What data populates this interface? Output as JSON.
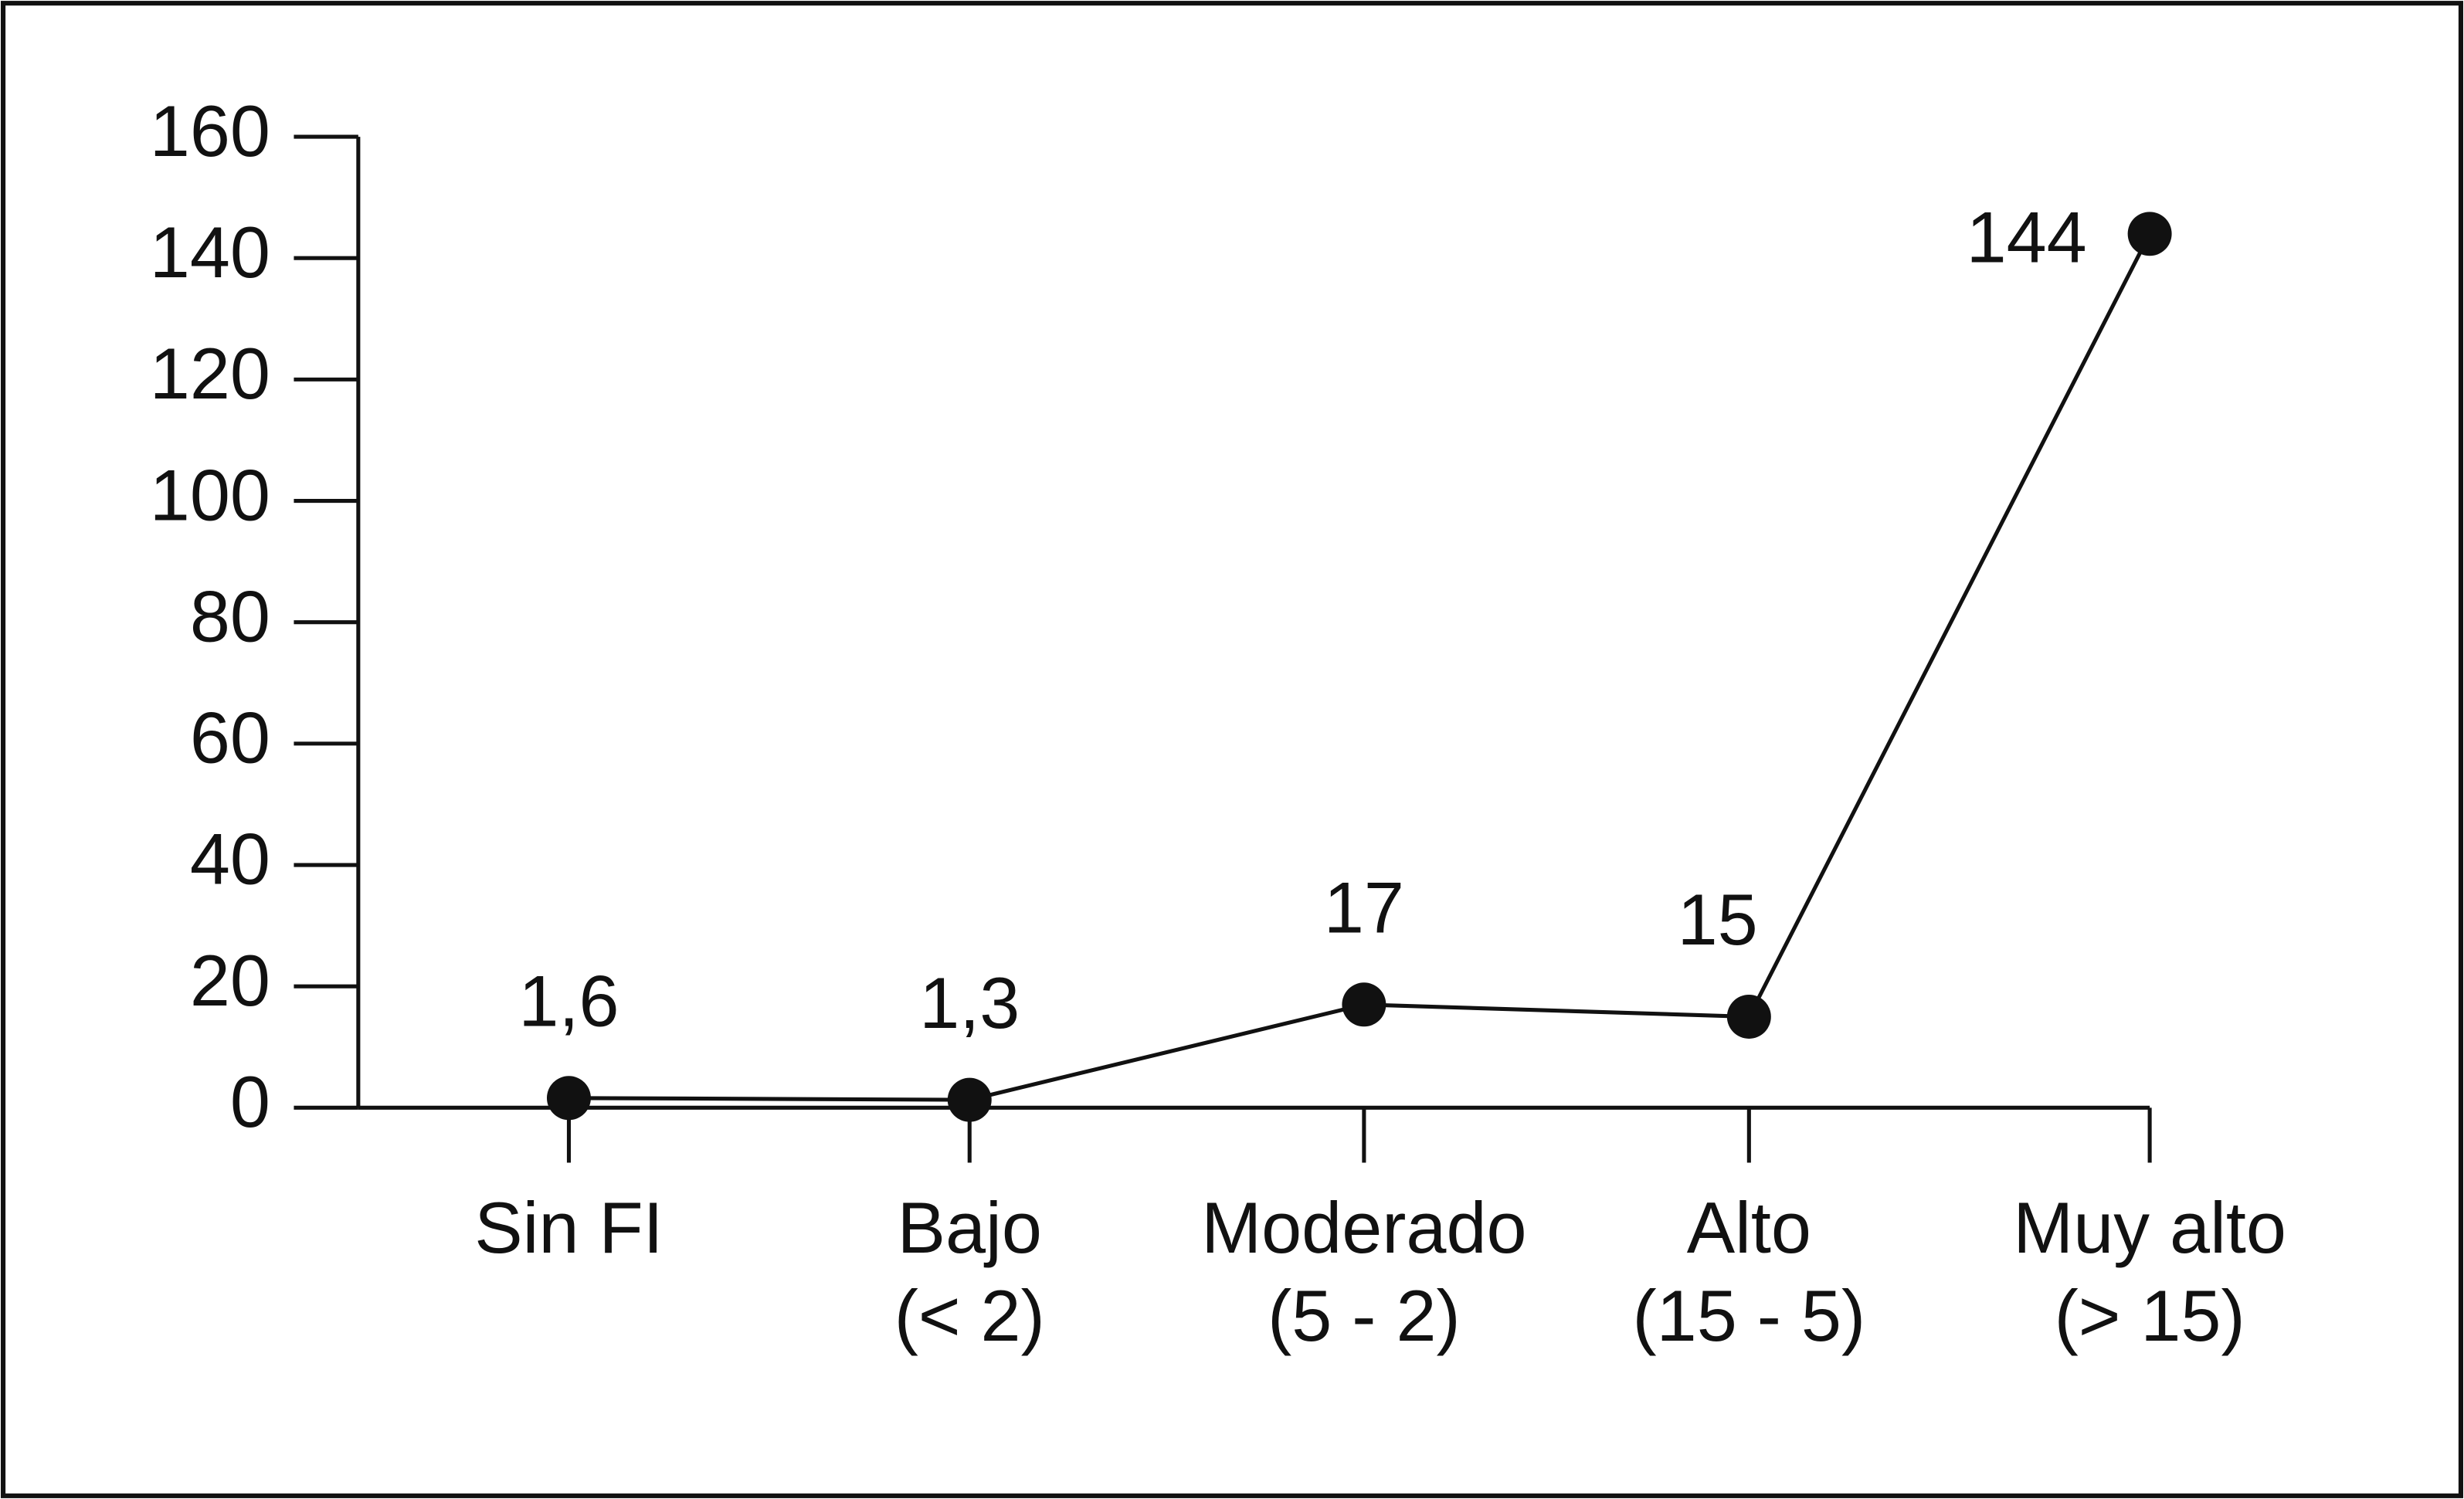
{
  "chart_data": {
    "type": "line",
    "categories": [
      "Sin FI",
      "Bajo\n(< 2)",
      "Moderado\n(5 - 2)",
      "Alto\n(15 - 5)",
      "Muy alto\n(> 15)"
    ],
    "values": [
      1.6,
      1.3,
      17,
      15,
      144
    ],
    "value_labels": [
      "1,6",
      "1,3",
      "17",
      "15",
      "144"
    ],
    "color": "#111111",
    "ylim": [
      0,
      160
    ],
    "yticks": [
      0,
      20,
      40,
      60,
      80,
      100,
      120,
      140,
      160
    ]
  }
}
